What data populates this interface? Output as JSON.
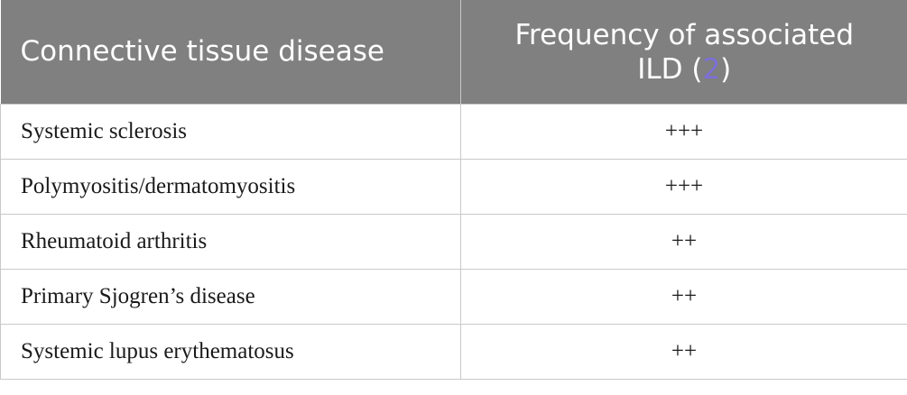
{
  "header": {
    "col1": "Connective tissue disease",
    "col2_prefix": "Frequency of associated ILD (",
    "col2_ref": "2",
    "col2_suffix": ")"
  },
  "rows": [
    {
      "disease": "Systemic sclerosis",
      "frequency": "+++"
    },
    {
      "disease": "Polymyositis/dermatomyositis",
      "frequency": "+++"
    },
    {
      "disease": "Rheumatoid arthritis",
      "frequency": "++"
    },
    {
      "disease": "Primary Sjogren’s disease",
      "frequency": "++"
    },
    {
      "disease": "Systemic lupus erythematosus",
      "frequency": "++"
    }
  ],
  "colors": {
    "header_bg": "#7f807f",
    "header_text": "#ffffff",
    "ref_link": "#7b6fd9",
    "border": "#c9c9c9"
  }
}
